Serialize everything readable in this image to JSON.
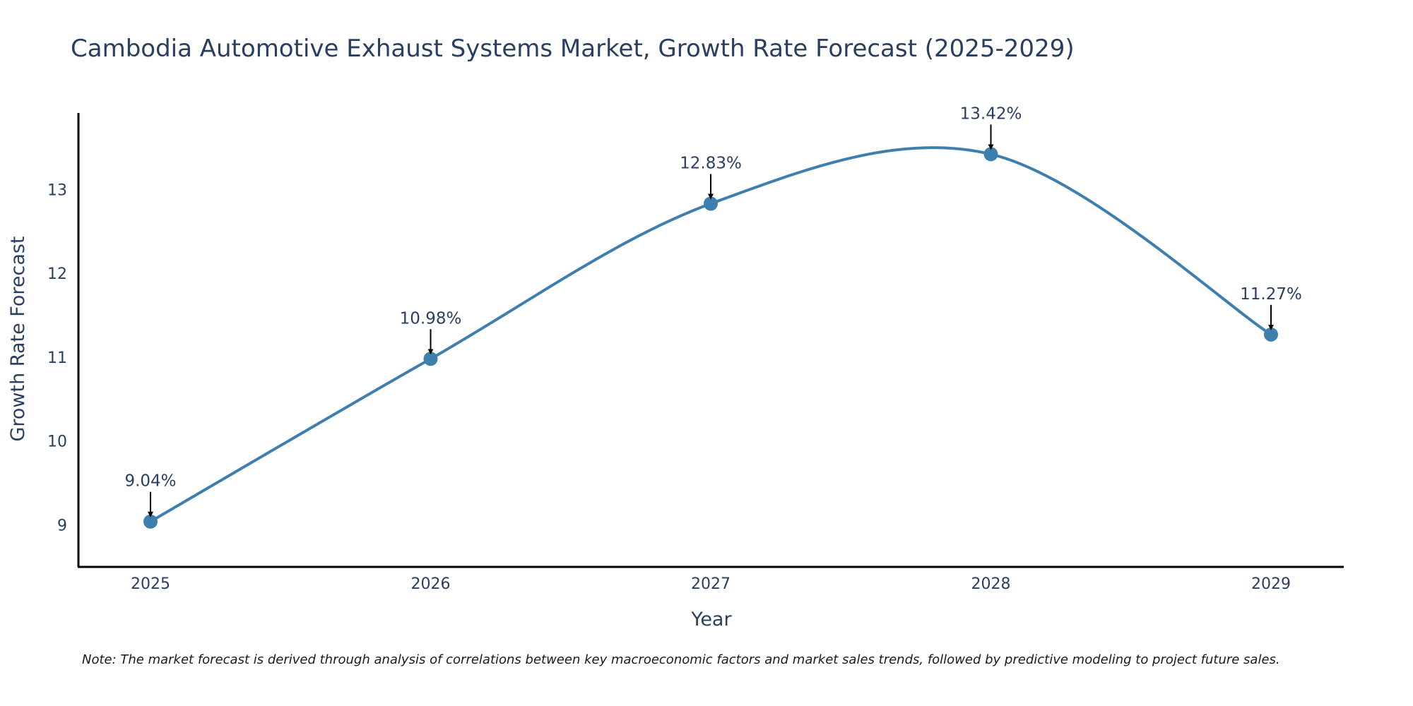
{
  "chart_data": {
    "type": "line",
    "title": "Cambodia Automotive Exhaust Systems Market, Growth Rate Forecast (2025-2029)",
    "xlabel": "Year",
    "ylabel": "Growth Rate Forecast",
    "categories": [
      "2025",
      "2026",
      "2027",
      "2028",
      "2029"
    ],
    "series": [
      {
        "name": "Growth Rate Forecast",
        "values": [
          9.04,
          10.98,
          12.83,
          13.42,
          11.27
        ],
        "labels": [
          "9.04%",
          "10.98%",
          "12.83%",
          "13.42%",
          "11.27%"
        ],
        "color": "#3e7fad",
        "line_shape": "spline"
      }
    ],
    "yticks": [
      9,
      10,
      11,
      12,
      13
    ],
    "ylim": [
      8.52,
      13.92
    ],
    "grid": false,
    "annotations_arrow_color": "#000000",
    "axis_color": "#000000",
    "note": "Note: The market forecast is derived through analysis of correlations between key macroeconomic factors and market sales trends, followed by predictive modeling to project future sales."
  }
}
